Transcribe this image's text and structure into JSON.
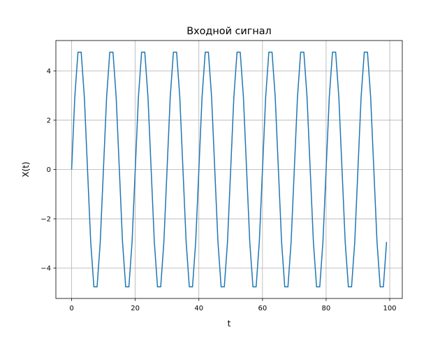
{
  "chart_data": {
    "type": "line",
    "title": "Входной сигнал",
    "xlabel": "t",
    "ylabel": "X(t)",
    "xlim": [
      -4.95,
      103.95
    ],
    "ylim": [
      -5.23,
      5.23
    ],
    "xticks": [
      0,
      20,
      40,
      60,
      80,
      100
    ],
    "xtick_labels": [
      "0",
      "20",
      "40",
      "60",
      "80",
      "100"
    ],
    "yticks": [
      -4,
      -2,
      0,
      2,
      4
    ],
    "ytick_labels": [
      "−4",
      "−2",
      "0",
      "2",
      "4"
    ],
    "grid": true,
    "line_color": "#1f77b4",
    "series": [
      {
        "x": [
          0,
          1,
          2,
          3,
          4,
          5,
          6,
          7,
          8,
          9,
          10,
          11,
          12,
          13,
          14,
          15,
          16,
          17,
          18,
          19,
          20,
          21,
          22,
          23,
          24,
          25,
          26,
          27,
          28,
          29,
          30,
          31,
          32,
          33,
          34,
          35,
          36,
          37,
          38,
          39,
          40,
          41,
          42,
          43,
          44,
          45,
          46,
          47,
          48,
          49,
          50,
          51,
          52,
          53,
          54,
          55,
          56,
          57,
          58,
          59,
          60,
          61,
          62,
          63,
          64,
          65,
          66,
          67,
          68,
          69,
          70,
          71,
          72,
          73,
          74,
          75,
          76,
          77,
          78,
          79,
          80,
          81,
          82,
          83,
          84,
          85,
          86,
          87,
          88,
          89,
          90,
          91,
          92,
          93,
          94,
          95,
          96,
          97,
          98,
          99
        ],
        "y": [
          0,
          2.94,
          4.76,
          4.76,
          2.94,
          0,
          -2.94,
          -4.76,
          -4.76,
          -2.94,
          0,
          2.94,
          4.76,
          4.76,
          2.94,
          0,
          -2.94,
          -4.76,
          -4.76,
          -2.94,
          0,
          2.94,
          4.76,
          4.76,
          2.94,
          0,
          -2.94,
          -4.76,
          -4.76,
          -2.94,
          0,
          2.94,
          4.76,
          4.76,
          2.94,
          0,
          -2.94,
          -4.76,
          -4.76,
          -2.94,
          0,
          2.94,
          4.76,
          4.76,
          2.94,
          0,
          -2.94,
          -4.76,
          -4.76,
          -2.94,
          0,
          2.94,
          4.76,
          4.76,
          2.94,
          0,
          -2.94,
          -4.76,
          -4.76,
          -2.94,
          0,
          2.94,
          4.76,
          4.76,
          2.94,
          0,
          -2.94,
          -4.76,
          -4.76,
          -2.94,
          0,
          2.94,
          4.76,
          4.76,
          2.94,
          0,
          -2.94,
          -4.76,
          -4.76,
          -2.94,
          0,
          2.94,
          4.76,
          4.76,
          2.94,
          0,
          -2.94,
          -4.76,
          -4.76,
          -2.94,
          0,
          2.94,
          4.76,
          4.76,
          2.94,
          0,
          -2.94,
          -4.76,
          -4.76,
          -2.94
        ]
      }
    ]
  }
}
